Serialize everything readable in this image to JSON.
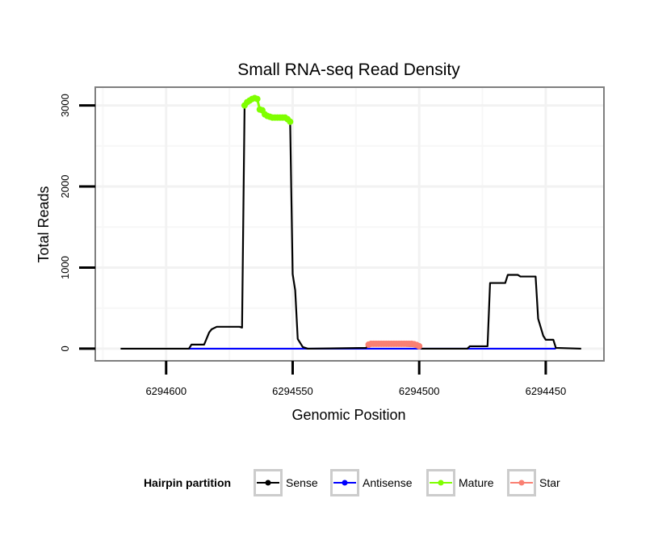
{
  "chart_data": {
    "type": "line",
    "title": "Small RNA-seq Read Density",
    "xlabel": "Genomic Position",
    "ylabel": "Total Reads",
    "xlim": [
      6294628,
      6294427
    ],
    "x_reversed": true,
    "ylim": [
      -150,
      3225
    ],
    "xticks": [
      6294600,
      6294550,
      6294500,
      6294450
    ],
    "xtick_labels": [
      "6294600",
      "6294550",
      "6294500",
      "6294450"
    ],
    "yticks": [
      0,
      1000,
      2000,
      3000
    ],
    "ytick_labels": [
      "0",
      "1000",
      "2000",
      "3000"
    ],
    "grid": true,
    "legend": {
      "title": "Hairpin partition",
      "placement": "bottom",
      "entries": [
        "Sense",
        "Antisense",
        "Mature",
        "Star"
      ]
    },
    "colors": {
      "Sense": "#000000",
      "Antisense": "#0000ff",
      "Mature": "#7fff00",
      "Star": "#fa8072"
    },
    "series": [
      {
        "name": "Sense",
        "kind": "line",
        "points": [
          [
            6294618,
            0
          ],
          [
            6294591,
            0
          ],
          [
            6294590,
            50
          ],
          [
            6294585,
            50
          ],
          [
            6294583,
            200
          ],
          [
            6294582,
            240
          ],
          [
            6294580,
            270
          ],
          [
            6294571,
            270
          ],
          [
            6294570,
            260
          ],
          [
            6294569,
            3000
          ],
          [
            6294568,
            3040
          ],
          [
            6294567,
            3060
          ],
          [
            6294566,
            3080
          ],
          [
            6294565,
            3090
          ],
          [
            6294564,
            3080
          ],
          [
            6294563,
            2950
          ],
          [
            6294562,
            2940
          ],
          [
            6294561,
            2890
          ],
          [
            6294560,
            2870
          ],
          [
            6294559,
            2860
          ],
          [
            6294558,
            2850
          ],
          [
            6294557,
            2850
          ],
          [
            6294556,
            2850
          ],
          [
            6294555,
            2850
          ],
          [
            6294554,
            2850
          ],
          [
            6294553,
            2850
          ],
          [
            6294552,
            2830
          ],
          [
            6294551,
            2800
          ],
          [
            6294550,
            920
          ],
          [
            6294549,
            720
          ],
          [
            6294548,
            120
          ],
          [
            6294546,
            20
          ],
          [
            6294544,
            0
          ],
          [
            6294521,
            10
          ],
          [
            6294520,
            50
          ],
          [
            6294500,
            30
          ],
          [
            6294499,
            0
          ],
          [
            6294481,
            0
          ],
          [
            6294480,
            30
          ],
          [
            6294473,
            30
          ],
          [
            6294472,
            810
          ],
          [
            6294466,
            810
          ],
          [
            6294465,
            910
          ],
          [
            6294461,
            910
          ],
          [
            6294460,
            890
          ],
          [
            6294454,
            890
          ],
          [
            6294453,
            370
          ],
          [
            6294451,
            160
          ],
          [
            6294450,
            110
          ],
          [
            6294447,
            110
          ],
          [
            6294446,
            10
          ],
          [
            6294436,
            0
          ]
        ]
      },
      {
        "name": "Antisense",
        "kind": "line",
        "points": [
          [
            6294591,
            0
          ],
          [
            6294446,
            0
          ]
        ]
      },
      {
        "name": "Mature",
        "kind": "points",
        "points": [
          [
            6294569,
            3000
          ],
          [
            6294568,
            3040
          ],
          [
            6294567,
            3060
          ],
          [
            6294566,
            3080
          ],
          [
            6294565,
            3090
          ],
          [
            6294564,
            3080
          ],
          [
            6294563,
            2950
          ],
          [
            6294562,
            2940
          ],
          [
            6294561,
            2890
          ],
          [
            6294560,
            2870
          ],
          [
            6294559,
            2860
          ],
          [
            6294558,
            2850
          ],
          [
            6294557,
            2850
          ],
          [
            6294556,
            2850
          ],
          [
            6294555,
            2850
          ],
          [
            6294554,
            2850
          ],
          [
            6294553,
            2850
          ],
          [
            6294552,
            2830
          ],
          [
            6294551,
            2800
          ]
        ]
      },
      {
        "name": "Star",
        "kind": "points",
        "points": [
          [
            6294520,
            50
          ],
          [
            6294519,
            60
          ],
          [
            6294518,
            60
          ],
          [
            6294517,
            60
          ],
          [
            6294516,
            60
          ],
          [
            6294515,
            60
          ],
          [
            6294514,
            60
          ],
          [
            6294513,
            60
          ],
          [
            6294512,
            60
          ],
          [
            6294511,
            60
          ],
          [
            6294510,
            60
          ],
          [
            6294509,
            60
          ],
          [
            6294508,
            60
          ],
          [
            6294507,
            60
          ],
          [
            6294506,
            60
          ],
          [
            6294505,
            60
          ],
          [
            6294504,
            60
          ],
          [
            6294503,
            60
          ],
          [
            6294502,
            55
          ],
          [
            6294501,
            45
          ],
          [
            6294500,
            30
          ]
        ]
      }
    ]
  }
}
